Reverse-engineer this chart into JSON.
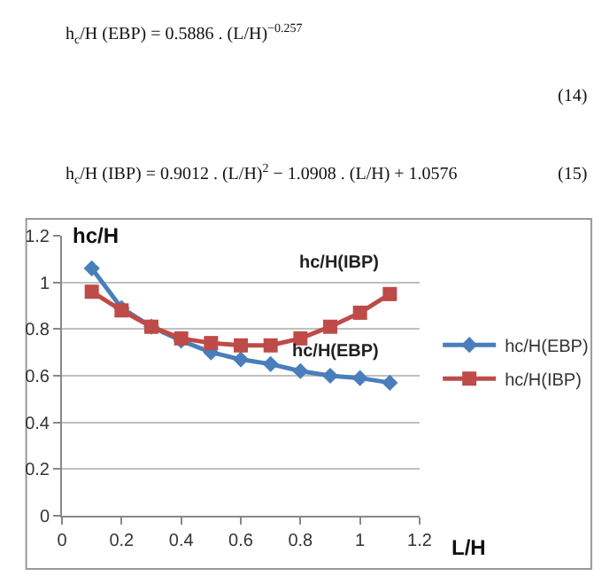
{
  "chart_data": {
    "type": "line",
    "x": [
      0.1,
      0.2,
      0.3,
      0.4,
      0.5,
      0.6,
      0.7,
      0.8,
      0.9,
      1.0,
      1.1
    ],
    "series": [
      {
        "name": "hc/H(EBP)",
        "color": "#4a7ebb",
        "marker": "diamond",
        "values": [
          1.06,
          0.89,
          0.81,
          0.75,
          0.7,
          0.67,
          0.65,
          0.62,
          0.6,
          0.59,
          0.57
        ]
      },
      {
        "name": "hc/H(IBP)",
        "color": "#be4b48",
        "marker": "square",
        "values": [
          0.96,
          0.88,
          0.81,
          0.76,
          0.74,
          0.73,
          0.73,
          0.76,
          0.81,
          0.87,
          0.95
        ]
      }
    ],
    "xlabel": "L/H",
    "ylabel": "hc/H",
    "xlim": [
      0,
      1.2
    ],
    "xticks": [
      0,
      0.2,
      0.4,
      0.6,
      0.8,
      1,
      1.2
    ],
    "ylim": [
      0,
      1.2
    ],
    "yticks": [
      0,
      0.2,
      0.4,
      0.6,
      0.8,
      1,
      1.2
    ],
    "grid": "y",
    "legend": "right",
    "line_style": "solid",
    "annotations": [
      "h$_{c}$/H (EBP) = 0.5886 . (L/H)$^{−0.257}$",
      "(14)",
      "h$_{c}$/H (IBP) = 0.9012 . (L/H)$^{2}$ − 1.0908 . (L/H) + 1.0576",
      "(15)",
      {
        "text": "hc/H(IBP)",
        "x": 1.1,
        "y": 0.95
      },
      {
        "text": "hc/H(EBP)",
        "x": 1.1,
        "y": 0.57
      }
    ]
  }
}
